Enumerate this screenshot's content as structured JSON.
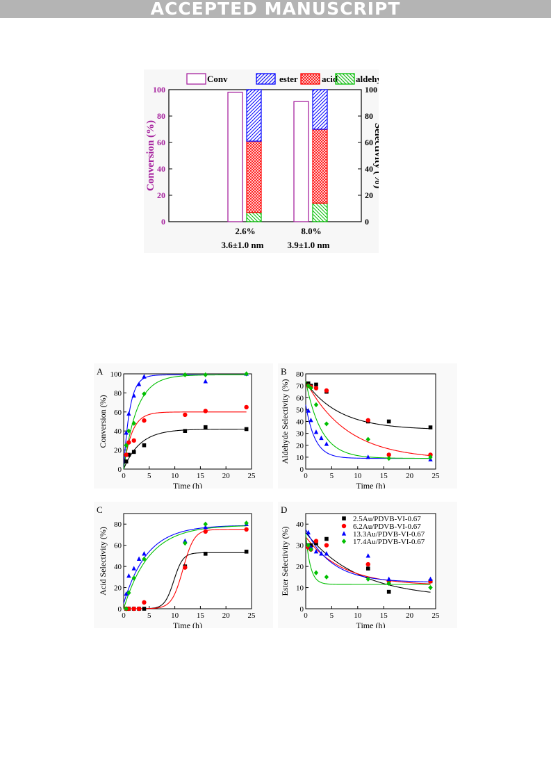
{
  "banner": "ACCEPTED MANUSCRIPT",
  "colors": {
    "purple": "#a6229e",
    "blue": "#0000ff",
    "red": "#ff0000",
    "green": "#00bf00",
    "black": "#000000"
  },
  "chart_data": [
    {
      "type": "bar",
      "legend": [
        "Conv",
        "ester",
        "acid",
        "aldehyde"
      ],
      "categories": [
        "2.6%",
        "8.0%"
      ],
      "sublabels": [
        "3.6±1.0 nm",
        "3.9±1.0 nm"
      ],
      "ylabel": "Conversion (%)",
      "y2label": "Selectivity (%)",
      "ylim": [
        0,
        100
      ],
      "ticks": [
        "0",
        "20",
        "40",
        "60",
        "80",
        "100"
      ],
      "conversion": [
        98,
        91
      ],
      "selectivity_series": [
        {
          "name": "aldehyde",
          "values": [
            7,
            14
          ]
        },
        {
          "name": "acid",
          "values": [
            54,
            56
          ]
        },
        {
          "name": "ester",
          "values": [
            39,
            30
          ]
        }
      ]
    },
    {
      "panel": "A",
      "type": "scatter",
      "xlabel": "Time (h)",
      "ylabel": "Conversion (%)",
      "xlim": [
        0,
        25
      ],
      "ylim": [
        0,
        100
      ],
      "xticks": [
        "0",
        "5",
        "10",
        "15",
        "20",
        "25"
      ],
      "yticks": [
        "0",
        "20",
        "40",
        "60",
        "80",
        "100"
      ],
      "series": [
        {
          "color": "black",
          "marker": "square",
          "x": [
            0.5,
            1,
            2,
            4,
            12,
            16,
            24
          ],
          "y": [
            8,
            15,
            18,
            25,
            40,
            44,
            42
          ]
        },
        {
          "color": "red",
          "marker": "circle",
          "x": [
            0.5,
            1,
            2,
            4,
            12,
            16,
            24
          ],
          "y": [
            15,
            28,
            30,
            51,
            57,
            61,
            65
          ]
        },
        {
          "color": "blue",
          "marker": "triangle",
          "x": [
            0.5,
            1,
            2,
            3,
            4,
            16,
            24
          ],
          "y": [
            38,
            58,
            77,
            89,
            97,
            92,
            100
          ]
        },
        {
          "color": "green",
          "marker": "diamond",
          "x": [
            0.5,
            1,
            2,
            4,
            12,
            16,
            24
          ],
          "y": [
            25,
            40,
            48,
            79,
            99,
            99,
            100
          ]
        }
      ]
    },
    {
      "panel": "B",
      "type": "scatter",
      "xlabel": "Time (h)",
      "ylabel": "Aldehyde Selectivity (%)",
      "xlim": [
        0,
        25
      ],
      "ylim": [
        0,
        80
      ],
      "xticks": [
        "0",
        "5",
        "10",
        "15",
        "20",
        "25"
      ],
      "yticks": [
        "0",
        "10",
        "20",
        "30",
        "40",
        "50",
        "60",
        "70",
        "80"
      ],
      "series": [
        {
          "color": "black",
          "marker": "square",
          "x": [
            0.5,
            1,
            2,
            4,
            12,
            16,
            24
          ],
          "y": [
            72,
            70,
            71,
            65,
            40,
            40,
            35
          ]
        },
        {
          "color": "red",
          "marker": "circle",
          "x": [
            0.5,
            1,
            2,
            4,
            12,
            16,
            24
          ],
          "y": [
            70,
            69,
            68,
            66,
            41,
            12,
            12
          ]
        },
        {
          "color": "blue",
          "marker": "triangle",
          "x": [
            0.5,
            1,
            2,
            3,
            4,
            12,
            24
          ],
          "y": [
            49,
            41,
            31,
            26,
            21,
            10,
            8
          ]
        },
        {
          "color": "green",
          "marker": "diamond",
          "x": [
            0.5,
            1,
            2,
            4,
            12,
            16,
            24
          ],
          "y": [
            70,
            68,
            54,
            38,
            25,
            9,
            10
          ]
        }
      ]
    },
    {
      "panel": "C",
      "type": "scatter",
      "xlabel": "Time (h)",
      "ylabel": "Acid Selectivity (%)",
      "xlim": [
        0,
        25
      ],
      "ylim": [
        0,
        90
      ],
      "xticks": [
        "0",
        "5",
        "10",
        "15",
        "20",
        "25"
      ],
      "yticks": [
        "0",
        "20",
        "40",
        "60",
        "80"
      ],
      "series": [
        {
          "color": "black",
          "marker": "square",
          "x": [
            0.5,
            1,
            2,
            3,
            4,
            12,
            16,
            24
          ],
          "y": [
            0,
            0,
            0,
            0,
            0,
            40,
            52,
            54
          ]
        },
        {
          "color": "red",
          "marker": "circle",
          "x": [
            0.5,
            1,
            2,
            3,
            4,
            12,
            16,
            24
          ],
          "y": [
            0,
            0,
            0,
            0,
            6,
            39,
            73,
            75
          ]
        },
        {
          "color": "blue",
          "marker": "triangle",
          "x": [
            0.5,
            1,
            2,
            3,
            4,
            12,
            16,
            24
          ],
          "y": [
            14,
            31,
            38,
            47,
            52,
            64,
            77,
            80
          ]
        },
        {
          "color": "green",
          "marker": "diamond",
          "x": [
            0.5,
            1,
            2,
            4,
            12,
            16,
            24
          ],
          "y": [
            0,
            15,
            29,
            47,
            62,
            80,
            81
          ]
        }
      ]
    },
    {
      "panel": "D",
      "type": "scatter",
      "xlabel": "Time (h)",
      "ylabel": "Ester Selectivity (%)",
      "xlim": [
        0,
        25
      ],
      "ylim": [
        0,
        45
      ],
      "xticks": [
        "0",
        "5",
        "10",
        "15",
        "20",
        "25"
      ],
      "yticks": [
        "0",
        "10",
        "20",
        "30",
        "40"
      ],
      "legend": [
        "2.5Au/PDVB-VI-0.67",
        "6.2Au/PDVB-VI-0.67",
        "13.3Au/PDVB-VI-0.67",
        "17.4Au/PDVB-VI-0.67"
      ],
      "series": [
        {
          "name": "2.5Au/PDVB-VI-0.67",
          "color": "black",
          "marker": "square",
          "x": [
            0.5,
            1,
            2,
            4,
            12,
            16,
            24
          ],
          "y": [
            30,
            30,
            31,
            33,
            19,
            8,
            13
          ]
        },
        {
          "name": "6.2Au/PDVB-VI-0.67",
          "color": "red",
          "marker": "circle",
          "x": [
            0.5,
            1,
            2,
            4,
            12,
            16,
            24
          ],
          "y": [
            29,
            28,
            32,
            30,
            21,
            13,
            13
          ]
        },
        {
          "name": "13.3Au/PDVB-VI-0.67",
          "color": "blue",
          "marker": "triangle",
          "x": [
            0.5,
            1,
            2,
            3,
            4,
            12,
            16,
            24
          ],
          "y": [
            36,
            29,
            27,
            26,
            26,
            25,
            14,
            14
          ]
        },
        {
          "name": "17.4Au/PDVB-VI-0.67",
          "color": "green",
          "marker": "diamond",
          "x": [
            0.5,
            1,
            2,
            4,
            12,
            16,
            24
          ],
          "y": [
            30,
            28,
            17,
            15,
            14,
            12,
            10
          ]
        }
      ]
    }
  ]
}
